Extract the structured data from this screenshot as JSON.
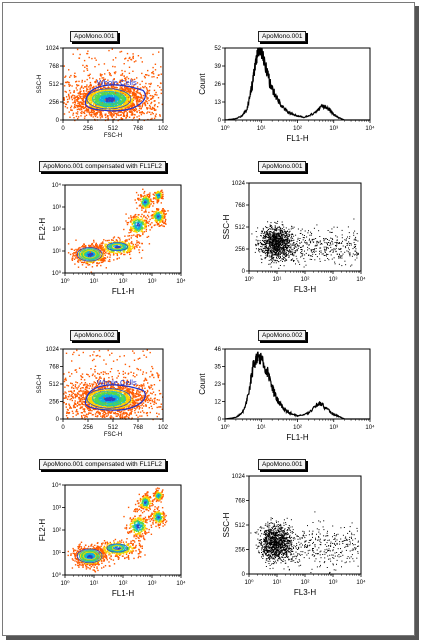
{
  "chart_data": [
    {
      "type": "scatter",
      "title": "ApoMono.001",
      "xlabel": "FSC-H",
      "ylabel": "SSC-H",
      "xlim": [
        0,
        1024
      ],
      "ylim": [
        0,
        1024
      ],
      "x_ticks": [
        "0",
        "256",
        "512",
        "768",
        "102"
      ],
      "y_ticks": [
        "0",
        "256",
        "512",
        "768",
        "1024"
      ],
      "gate_label": "Whole Cells",
      "style": "density"
    },
    {
      "type": "line",
      "title": "ApoMono.001",
      "xlabel": "FL1-H",
      "ylabel": "Count",
      "xscale": "log",
      "xlim": [
        1,
        10000
      ],
      "ylim": [
        0,
        52
      ],
      "x_ticks": [
        "10⁰",
        "10¹",
        "10²",
        "10³",
        "10⁴"
      ],
      "y_ticks": [
        "0",
        "13",
        "26",
        "39",
        "52"
      ],
      "x": [
        1,
        2,
        3,
        4,
        5,
        6,
        7,
        8,
        9,
        10,
        12,
        15,
        18,
        22,
        27,
        33,
        40,
        50,
        60,
        80,
        100,
        150,
        200,
        300,
        400,
        500,
        600,
        800,
        1000,
        1300,
        1600,
        2000,
        3000
      ],
      "y": [
        0,
        1,
        3,
        8,
        18,
        30,
        40,
        48,
        52,
        50,
        43,
        33,
        26,
        20,
        16,
        12,
        9,
        7,
        5,
        4,
        3,
        2,
        3,
        5,
        8,
        10,
        9,
        7,
        4,
        2,
        1,
        0,
        0
      ]
    },
    {
      "type": "scatter",
      "title": "ApoMono.001 compensated with FL1FL2",
      "xlabel": "FL1-H",
      "ylabel": "FL2-H",
      "xscale": "log",
      "yscale": "log",
      "xlim": [
        1,
        10000
      ],
      "ylim": [
        1,
        10000
      ],
      "x_ticks": [
        "10⁰",
        "10¹",
        "10²",
        "10³",
        "10⁴"
      ],
      "y_ticks": [
        "10⁰",
        "10¹",
        "10²",
        "10³",
        "10⁴"
      ],
      "style": "density"
    },
    {
      "type": "scatter",
      "title": "ApoMono.001",
      "xlabel": "FL3-H",
      "ylabel": "SSC-H",
      "xscale": "log",
      "xlim": [
        1,
        10000
      ],
      "ylim": [
        0,
        1024
      ],
      "x_ticks": [
        "10⁰",
        "10¹",
        "10²",
        "10³",
        "10⁴"
      ],
      "y_ticks": [
        "0",
        "256",
        "512",
        "768",
        "1024"
      ],
      "style": "dot"
    },
    {
      "type": "scatter",
      "title": "ApoMono.002",
      "xlabel": "FSC-H",
      "ylabel": "SSC-H",
      "xlim": [
        0,
        1024
      ],
      "ylim": [
        0,
        1024
      ],
      "x_ticks": [
        "0",
        "256",
        "512",
        "768",
        "102"
      ],
      "y_ticks": [
        "0",
        "256",
        "512",
        "768",
        "1024"
      ],
      "gate_label": "Whole Cells",
      "style": "density"
    },
    {
      "type": "line",
      "title": "ApoMono.002",
      "xlabel": "FL1-H",
      "ylabel": "Count",
      "xscale": "log",
      "xlim": [
        1,
        10000
      ],
      "ylim": [
        0,
        46
      ],
      "x_ticks": [
        "10⁰",
        "10¹",
        "10²",
        "10³",
        "10⁴"
      ],
      "y_ticks": [
        "0",
        "12",
        "23",
        "35",
        "46"
      ],
      "x": [
        1,
        2,
        3,
        4,
        5,
        6,
        7,
        8,
        10,
        12,
        15,
        18,
        22,
        27,
        33,
        40,
        50,
        60,
        80,
        100,
        150,
        200,
        300,
        400,
        500,
        600,
        800,
        1000,
        1300,
        1600,
        2000,
        3000
      ],
      "y": [
        0,
        1,
        4,
        12,
        24,
        34,
        40,
        42,
        40,
        36,
        30,
        24,
        18,
        13,
        10,
        7,
        5,
        4,
        3,
        2,
        3,
        4,
        8,
        11,
        9,
        7,
        5,
        3,
        2,
        1,
        0,
        0
      ]
    },
    {
      "type": "scatter",
      "title": "ApoMono.001 compensated with FL1FL2",
      "xlabel": "FL1-H",
      "ylabel": "FL2-H",
      "xscale": "log",
      "yscale": "log",
      "xlim": [
        1,
        10000
      ],
      "ylim": [
        1,
        10000
      ],
      "x_ticks": [
        "10⁰",
        "10¹",
        "10²",
        "10³",
        "10⁴"
      ],
      "y_ticks": [
        "10⁰",
        "10¹",
        "10²",
        "10³",
        "10⁴"
      ],
      "style": "density"
    },
    {
      "type": "scatter",
      "title": "ApoMono.001",
      "xlabel": "FL3-H",
      "ylabel": "SSC-H",
      "xscale": "log",
      "xlim": [
        1,
        10000
      ],
      "ylim": [
        0,
        1024
      ],
      "x_ticks": [
        "10⁰",
        "10¹",
        "10²",
        "10³",
        "10⁴"
      ],
      "y_ticks": [
        "0",
        "256",
        "512",
        "768",
        "1024"
      ],
      "style": "dot"
    }
  ]
}
